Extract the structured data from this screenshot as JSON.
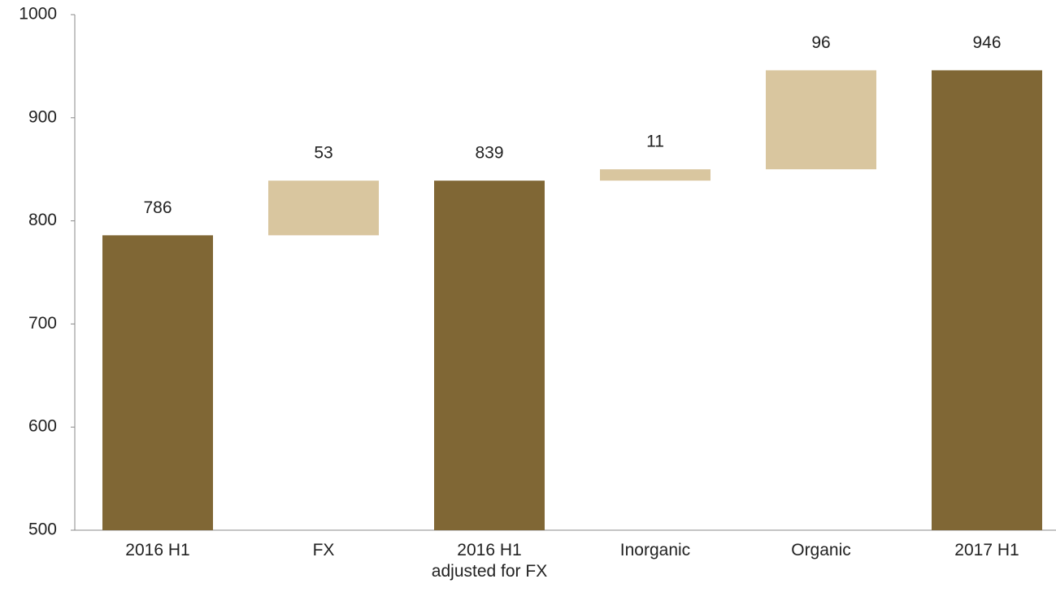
{
  "chart_data": {
    "type": "waterfall",
    "categories": [
      "2016 H1",
      "FX",
      "2016 H1\nadjusted for FX",
      "Inorganic",
      "Organic",
      "2017 H1"
    ],
    "values": [
      786,
      53,
      839,
      11,
      96,
      946
    ],
    "measure": [
      "total",
      "relative",
      "total",
      "relative",
      "relative",
      "total"
    ],
    "colors": {
      "total": "#806735",
      "relative": "#d9c69f"
    },
    "ylim": [
      500,
      1000
    ],
    "yticks": [
      500,
      600,
      700,
      800,
      900,
      1000
    ],
    "grid": false
  }
}
